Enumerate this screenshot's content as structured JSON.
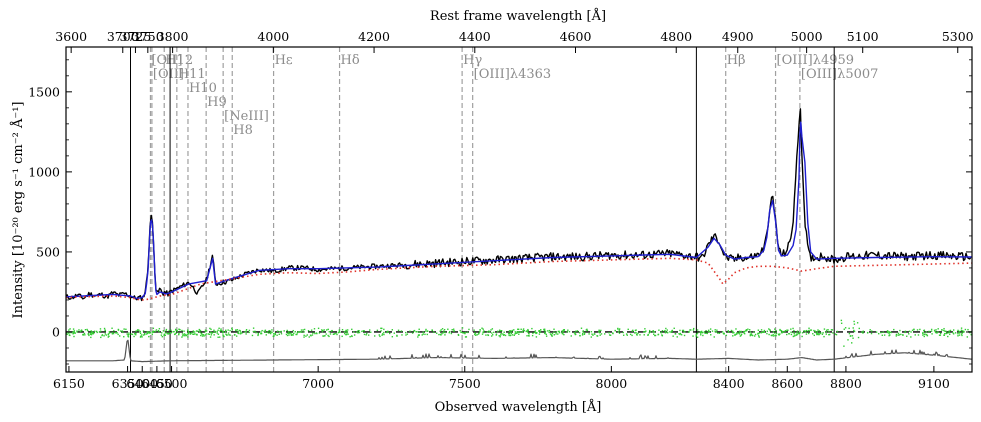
{
  "chart_data": {
    "type": "line",
    "title": "",
    "xlabel": "Observed wavelength [Å]",
    "x2label": "Rest frame wavelength [Å]",
    "ylabel": "Intensity [10⁻²⁰ erg s⁻¹ cm⁻² Å⁻¹]",
    "ylim": [
      -250,
      1780
    ],
    "yticks": [
      0,
      500,
      1000,
      1500
    ],
    "grid": false,
    "legend": "none",
    "xscale": "piecewise",
    "panels": [
      {
        "obs_range": [
          6140,
          6360
        ],
        "rest_range": [
          3590,
          3715
        ],
        "obs_ticks": [
          6150,
          6350
        ],
        "rest_ticks": [
          3600,
          3700
        ]
      },
      {
        "obs_range": [
          6360,
          6495
        ],
        "rest_range": [
          3715,
          3795
        ],
        "obs_ticks": [
          6400,
          6450
        ],
        "rest_ticks": [
          3725,
          3750
        ]
      },
      {
        "obs_range": [
          6495,
          8290
        ],
        "rest_range": [
          3795,
          4840
        ],
        "obs_ticks": [
          6500,
          7000,
          7500,
          8000
        ],
        "rest_ticks": [
          3800,
          4000,
          4200,
          4400,
          4600,
          4800
        ]
      },
      {
        "obs_range": [
          8290,
          8760
        ],
        "rest_range": [
          4840,
          5040
        ],
        "obs_ticks": [
          8400,
          8600
        ],
        "rest_ticks": [
          4900,
          5000
        ]
      },
      {
        "obs_range": [
          8760,
          9230
        ],
        "rest_range": [
          5040,
          5330
        ],
        "obs_ticks": [
          8800,
          9100
        ],
        "rest_ticks": [
          5100,
          5300
        ]
      }
    ],
    "emission_lines": [
      {
        "label": "[OII]",
        "obs": 6428,
        "label_row": 0
      },
      {
        "label": "[OII]",
        "obs": 6433,
        "label_row": 1
      },
      {
        "label": "H12",
        "obs": 6475,
        "label_row": 0
      },
      {
        "label": "H11",
        "obs": 6518,
        "label_row": 1
      },
      {
        "label": "H10",
        "obs": 6556,
        "label_row": 2
      },
      {
        "label": "H9",
        "obs": 6618,
        "label_row": 3
      },
      {
        "label": "[NeIII]",
        "obs": 6676,
        "label_row": 4
      },
      {
        "label": "H8",
        "obs": 6707,
        "label_row": 5
      },
      {
        "label": "Hε",
        "obs": 6848,
        "label_row": 0
      },
      {
        "label": "Hδ",
        "obs": 7073,
        "label_row": 0
      },
      {
        "label": "Hγ",
        "obs": 7491,
        "label_row": 0
      },
      {
        "label": "[OIII]λ4363",
        "obs": 7527,
        "label_row": 1
      },
      {
        "label": "Hβ",
        "obs": 8390,
        "label_row": 0
      },
      {
        "label": "[OIII]λ4959",
        "obs": 8560,
        "label_row": 0
      },
      {
        "label": "[OIII]λ5007",
        "obs": 8643,
        "label_row": 1
      }
    ],
    "series": [
      {
        "style": "observed spectrum",
        "color": "#000000",
        "x": [
          6140,
          6160,
          6180,
          6200,
          6220,
          6240,
          6260,
          6280,
          6300,
          6320,
          6340,
          6360,
          6370,
          6380,
          6390,
          6400,
          6405,
          6410,
          6415,
          6420,
          6423,
          6426,
          6429,
          6432,
          6435,
          6438,
          6441,
          6444,
          6447,
          6450,
          6455,
          6460,
          6465,
          6470,
          6475,
          6480,
          6485,
          6490,
          6495,
          6560,
          6590,
          6620,
          6640,
          6650,
          6700,
          6750,
          6800,
          6850,
          6900,
          6950,
          7000,
          7100,
          7200,
          7300,
          7400,
          7500,
          7600,
          7700,
          7800,
          7900,
          8000,
          8100,
          8200,
          8290,
          8310,
          8330,
          8350,
          8370,
          8380,
          8390,
          8400,
          8420,
          8440,
          8460,
          8480,
          8500,
          8520,
          8530,
          8540,
          8550,
          8560,
          8570,
          8580,
          8590,
          8600,
          8610,
          8620,
          8630,
          8640,
          8643,
          8646,
          8650,
          8660,
          8670,
          8680,
          8690,
          8700,
          8720,
          8740,
          8760,
          8800,
          8900,
          9000,
          9100,
          9200,
          9230
        ],
        "y": [
          220,
          215,
          230,
          210,
          240,
          225,
          235,
          220,
          245,
          230,
          240,
          225,
          215,
          210,
          215,
          210,
          225,
          255,
          315,
          405,
          530,
          650,
          715,
          720,
          680,
          590,
          460,
          340,
          265,
          240,
          250,
          270,
          255,
          240,
          250,
          245,
          240,
          235,
          250,
          310,
          240,
          330,
          480,
          300,
          320,
          360,
          390,
          380,
          400,
          400,
          390,
          400,
          410,
          420,
          430,
          440,
          450,
          460,
          470,
          470,
          480,
          480,
          490,
          470,
          460,
          540,
          600,
          560,
          500,
          470,
          460,
          450,
          470,
          460,
          470,
          480,
          520,
          600,
          780,
          840,
          700,
          520,
          480,
          490,
          520,
          560,
          700,
          1000,
          1300,
          1450,
          1350,
          1100,
          700,
          520,
          450,
          470,
          460,
          480,
          460,
          450,
          470,
          480,
          470,
          480,
          470,
          470
        ]
      },
      {
        "style": "model fit",
        "color": "#1f1fd0",
        "x": [
          6140,
          6200,
          6300,
          6360,
          6380,
          6400,
          6410,
          6415,
          6420,
          6423,
          6426,
          6429,
          6432,
          6435,
          6438,
          6441,
          6444,
          6447,
          6450,
          6460,
          6470,
          6480,
          6495,
          6560,
          6620,
          6640,
          6650,
          6700,
          6800,
          6900,
          7000,
          7200,
          7400,
          7600,
          7800,
          8000,
          8200,
          8290,
          8330,
          8350,
          8370,
          8390,
          8420,
          8460,
          8500,
          8520,
          8530,
          8540,
          8550,
          8560,
          8570,
          8580,
          8600,
          8620,
          8630,
          8640,
          8643,
          8646,
          8650,
          8660,
          8670,
          8680,
          8700,
          8760,
          8900,
          9100,
          9230
        ],
        "y": [
          220,
          225,
          235,
          225,
          210,
          215,
          240,
          300,
          390,
          510,
          625,
          690,
          700,
          665,
          575,
          450,
          330,
          255,
          235,
          250,
          245,
          238,
          245,
          300,
          320,
          460,
          300,
          330,
          385,
          395,
          395,
          405,
          425,
          445,
          465,
          475,
          485,
          465,
          530,
          585,
          545,
          480,
          455,
          465,
          470,
          510,
          590,
          760,
          820,
          690,
          510,
          475,
          480,
          540,
          640,
          960,
          1230,
          1310,
          1220,
          1060,
          680,
          500,
          455,
          460,
          465,
          470,
          468
        ]
      },
      {
        "style": "continuum (dotted)",
        "color": "#e0332b",
        "x": [
          6140,
          6200,
          6300,
          6360,
          6380,
          6400,
          6420,
          6440,
          6460,
          6480,
          6495,
          6600,
          6700,
          6800,
          6900,
          7000,
          7100,
          7200,
          7400,
          7600,
          7800,
          8000,
          8200,
          8290,
          8330,
          8370,
          8380,
          8400,
          8420,
          8460,
          8500,
          8550,
          8600,
          8650,
          8700,
          8760,
          9000,
          9230
        ],
        "y": [
          215,
          220,
          225,
          215,
          205,
          200,
          205,
          215,
          225,
          230,
          230,
          300,
          330,
          360,
          370,
          365,
          375,
          390,
          410,
          420,
          440,
          450,
          460,
          450,
          430,
          330,
          300,
          330,
          370,
          400,
          410,
          410,
          400,
          380,
          395,
          410,
          420,
          430
        ]
      },
      {
        "style": "residuals (scatter, dotted)",
        "color": "#33cc33",
        "x": [
          6140,
          9230
        ],
        "y": [
          0,
          0
        ]
      },
      {
        "style": "noise / error spectrum",
        "color": "#555555",
        "x": [
          6140,
          6300,
          6340,
          6350,
          6360,
          6400,
          6495,
          7200,
          7400,
          7600,
          7800,
          8000,
          8200,
          8290,
          8400,
          8500,
          8600,
          8650,
          8700,
          8760,
          8900,
          9000,
          9100,
          9230
        ],
        "y": [
          -180,
          -180,
          -175,
          -30,
          -180,
          -185,
          -180,
          -170,
          -160,
          -165,
          -160,
          -170,
          -165,
          -170,
          -165,
          -175,
          -170,
          -160,
          -175,
          -170,
          -140,
          -130,
          -145,
          -170
        ]
      }
    ],
    "zero_line": {
      "y": 0,
      "style": "dashed",
      "color": "#000000"
    }
  }
}
